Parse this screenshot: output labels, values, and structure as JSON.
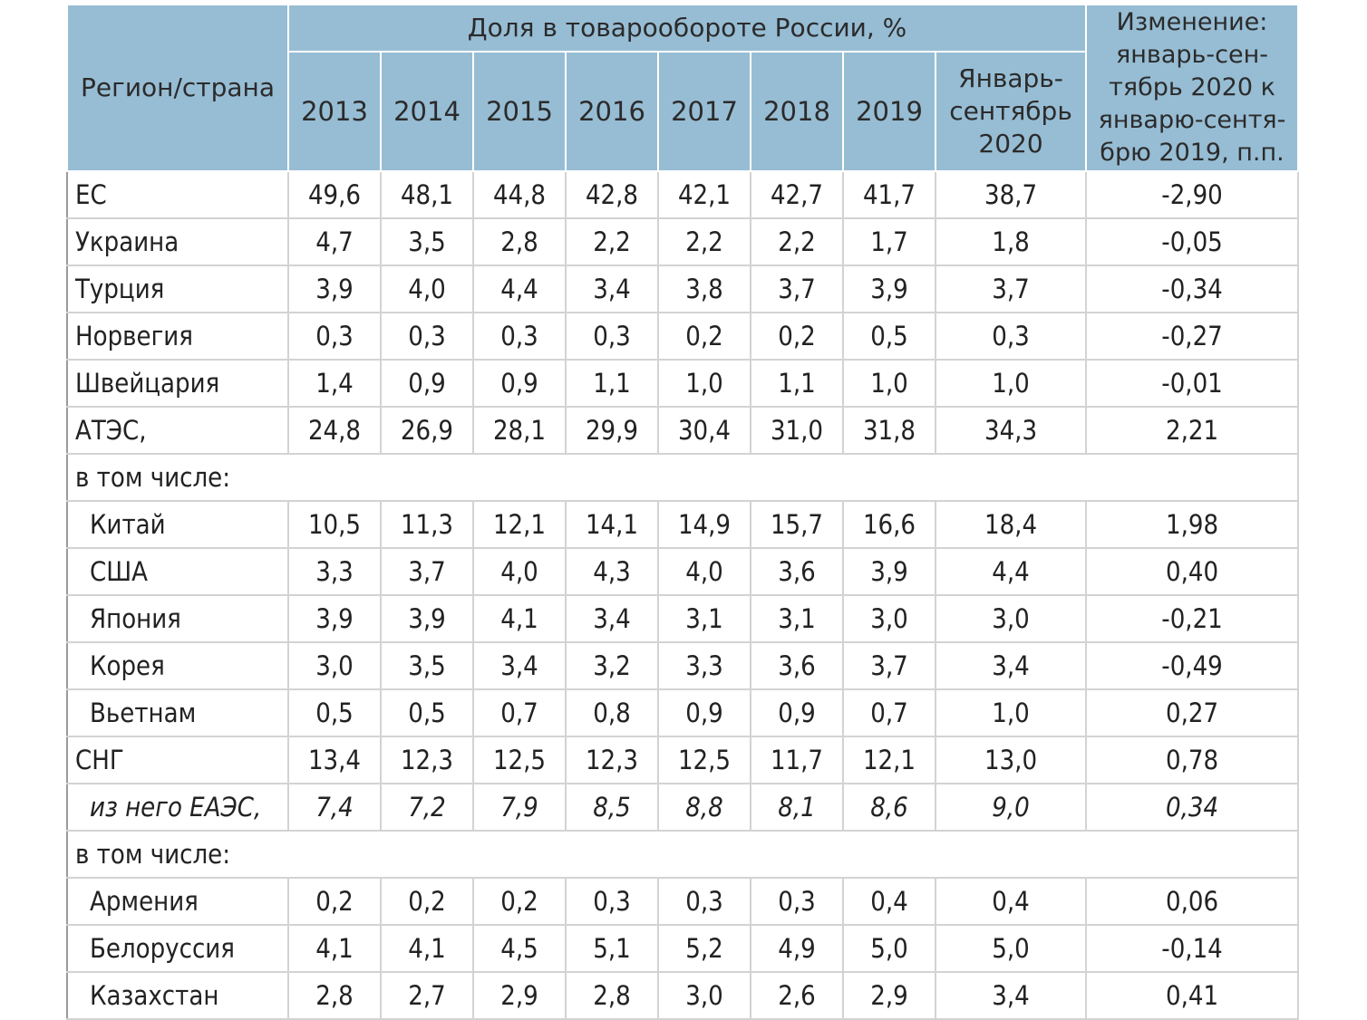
{
  "table": {
    "header": {
      "region": "Регион/страна",
      "group": "Доля в товарообороте России, %",
      "years": [
        "2013",
        "2014",
        "2015",
        "2016",
        "2017",
        "2018",
        "2019"
      ],
      "period": [
        "Январь-",
        "сентябрь",
        "2020"
      ],
      "change": [
        "Изменение:",
        "январь-сен-",
        "тябрь 2020 к",
        "январю-сентя-",
        "брю 2019, п.п."
      ]
    },
    "rows": [
      {
        "label": "ЕС",
        "values": [
          "49,6",
          "48,1",
          "44,8",
          "42,8",
          "42,1",
          "42,7",
          "41,7",
          "38,7",
          "-2,90"
        ]
      },
      {
        "label": "Украина",
        "values": [
          "4,7",
          "3,5",
          "2,8",
          "2,2",
          "2,2",
          "2,2",
          "1,7",
          "1,8",
          "-0,05"
        ]
      },
      {
        "label": "Турция",
        "values": [
          "3,9",
          "4,0",
          "4,4",
          "3,4",
          "3,8",
          "3,7",
          "3,9",
          "3,7",
          "-0,34"
        ]
      },
      {
        "label": "Норвегия",
        "values": [
          "0,3",
          "0,3",
          "0,3",
          "0,3",
          "0,2",
          "0,2",
          "0,5",
          "0,3",
          "-0,27"
        ]
      },
      {
        "label": "Швейцария",
        "values": [
          "1,4",
          "0,9",
          "0,9",
          "1,1",
          "1,0",
          "1,1",
          "1,0",
          "1,0",
          "-0,01"
        ]
      },
      {
        "label": "АТЭС,",
        "values": [
          "24,8",
          "26,9",
          "28,1",
          "29,9",
          "30,4",
          "31,0",
          "31,8",
          "34,3",
          "2,21"
        ]
      },
      {
        "label": "в том числе:",
        "span": true
      },
      {
        "label": "Китай",
        "indent": true,
        "values": [
          "10,5",
          "11,3",
          "12,1",
          "14,1",
          "14,9",
          "15,7",
          "16,6",
          "18,4",
          "1,98"
        ]
      },
      {
        "label": "США",
        "indent": true,
        "values": [
          "3,3",
          "3,7",
          "4,0",
          "4,3",
          "4,0",
          "3,6",
          "3,9",
          "4,4",
          "0,40"
        ]
      },
      {
        "label": "Япония",
        "indent": true,
        "values": [
          "3,9",
          "3,9",
          "4,1",
          "3,4",
          "3,1",
          "3,1",
          "3,0",
          "3,0",
          "-0,21"
        ]
      },
      {
        "label": "Корея",
        "indent": true,
        "values": [
          "3,0",
          "3,5",
          "3,4",
          "3,2",
          "3,3",
          "3,6",
          "3,7",
          "3,4",
          "-0,49"
        ]
      },
      {
        "label": "Вьетнам",
        "indent": true,
        "values": [
          "0,5",
          "0,5",
          "0,7",
          "0,8",
          "0,9",
          "0,9",
          "0,7",
          "1,0",
          "0,27"
        ]
      },
      {
        "label": "СНГ",
        "values": [
          "13,4",
          "12,3",
          "12,5",
          "12,3",
          "12,5",
          "11,7",
          "12,1",
          "13,0",
          "0,78"
        ]
      },
      {
        "label": "из него ЕАЭС,",
        "indent": true,
        "italic": true,
        "values": [
          "7,4",
          "7,2",
          "7,9",
          "8,5",
          "8,8",
          "8,1",
          "8,6",
          "9,0",
          "0,34"
        ]
      },
      {
        "label": "в том числе:",
        "span": true
      },
      {
        "label": "Армения",
        "indent": true,
        "values": [
          "0,2",
          "0,2",
          "0,2",
          "0,3",
          "0,3",
          "0,3",
          "0,4",
          "0,4",
          "0,06"
        ]
      },
      {
        "label": "Белоруссия",
        "indent": true,
        "values": [
          "4,1",
          "4,1",
          "4,5",
          "5,1",
          "5,2",
          "4,9",
          "5,0",
          "5,0",
          "-0,14"
        ]
      },
      {
        "label": "Казахстан",
        "indent": true,
        "values": [
          "2,8",
          "2,7",
          "2,9",
          "2,8",
          "3,0",
          "2,6",
          "2,9",
          "3,4",
          "0,41"
        ]
      }
    ]
  }
}
